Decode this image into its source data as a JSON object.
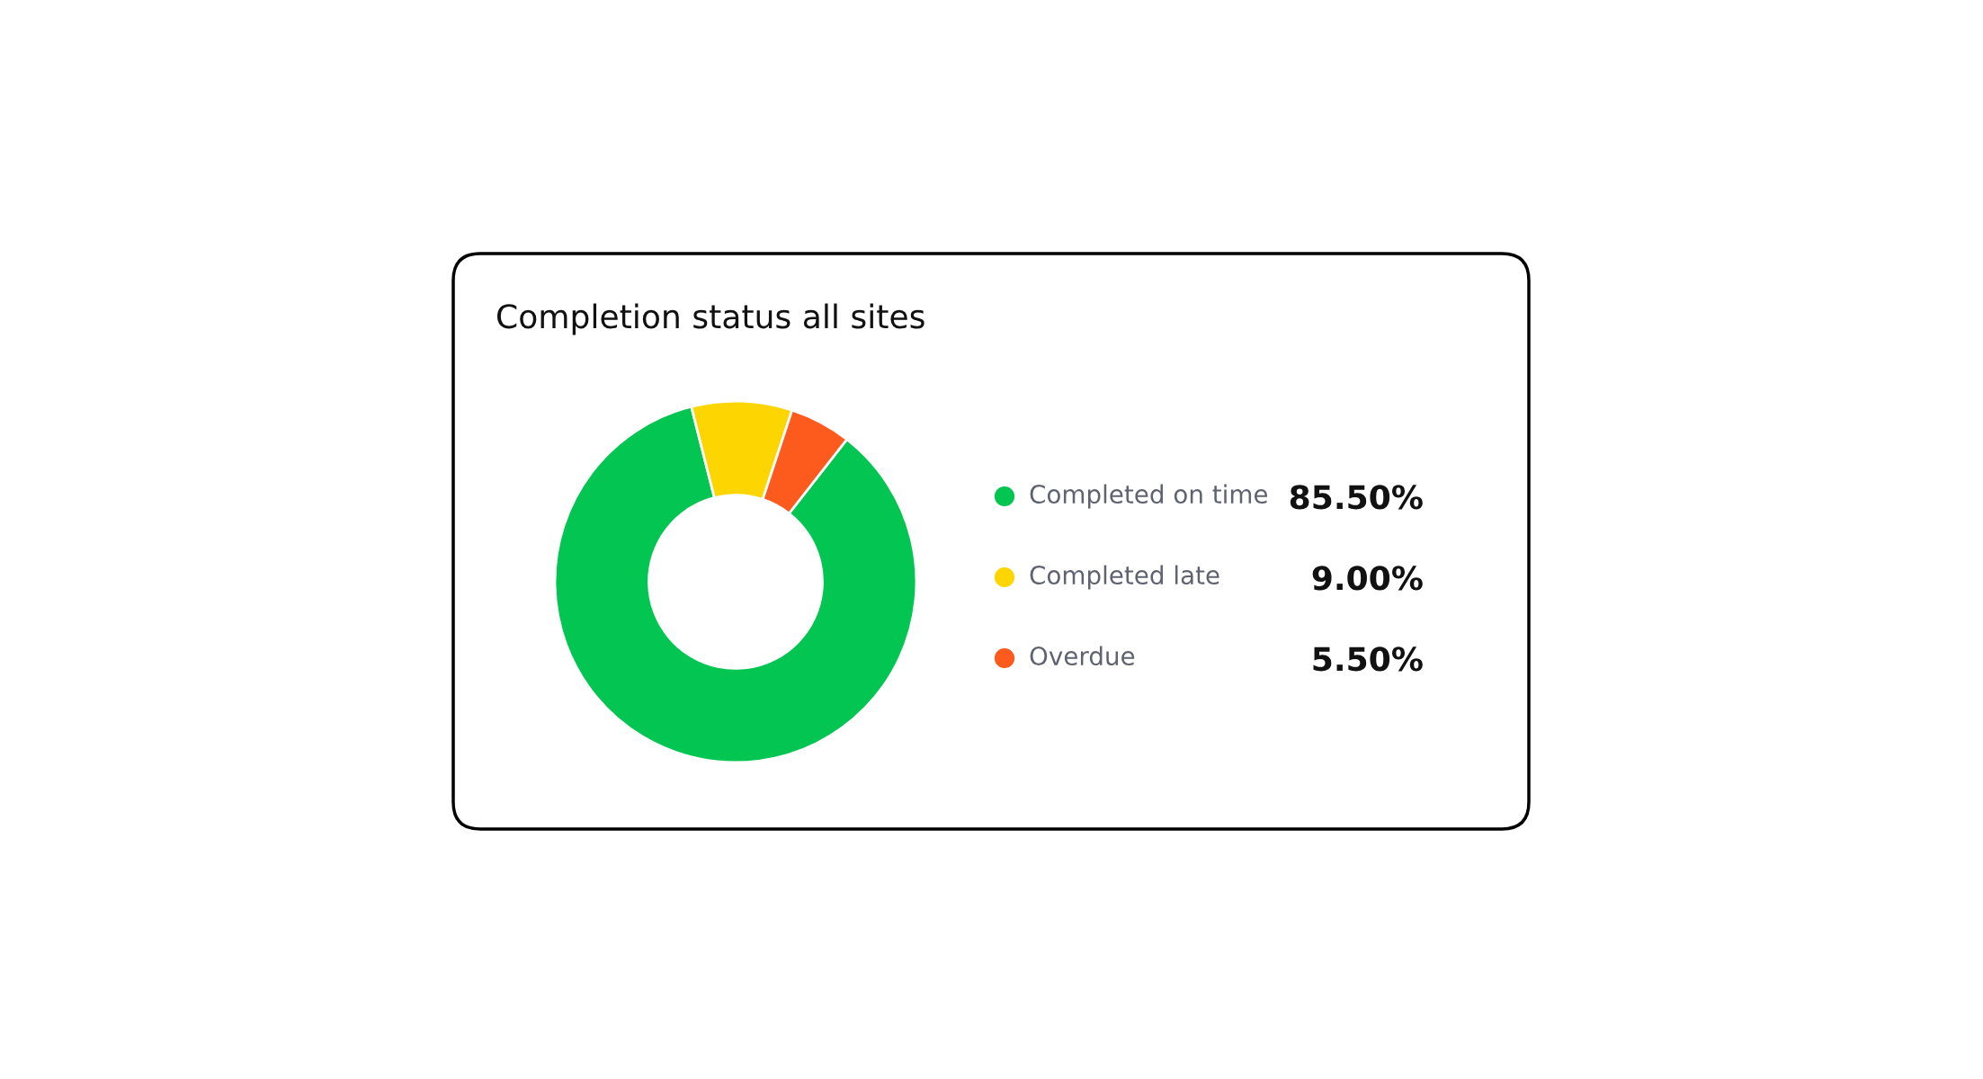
{
  "chart_data": {
    "type": "donut",
    "title": "Completion status all sites",
    "categories": [
      "Completed on time",
      "Completed late",
      "Overdue"
    ],
    "values": [
      85.5,
      9.0,
      5.5
    ],
    "colors": [
      "#03c652",
      "#fdd602",
      "#fd5a1e"
    ],
    "value_labels": [
      "85.50%",
      "9.00%",
      "5.50%"
    ],
    "legend": "right"
  }
}
